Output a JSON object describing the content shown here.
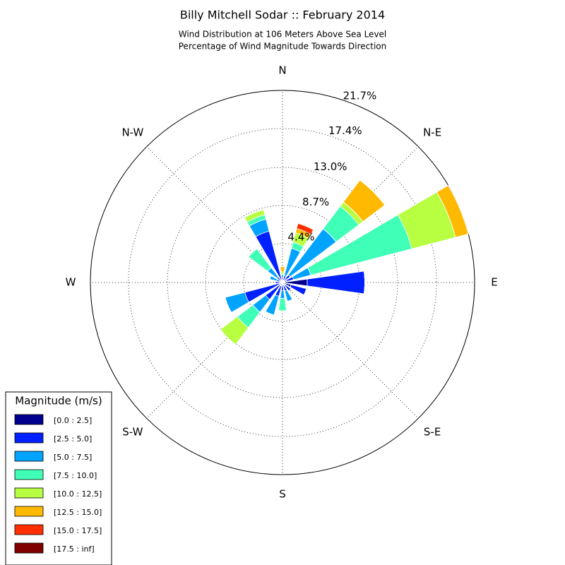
{
  "chart_data": {
    "type": "windrose",
    "title": "Billy Mitchell Sodar :: February 2014",
    "subtitle": [
      "Wind Distribution at 106 Meters Above Sea Level",
      "Percentage of Wind Magnitude Towards Direction"
    ],
    "x": [
      0,
      22.5,
      45,
      67.5,
      90,
      112.5,
      135,
      157.5,
      180,
      202.5,
      225,
      247.5,
      270,
      292.5,
      315,
      337.5
    ],
    "xlim": [
      0,
      360
    ],
    "xticks": [
      {
        "value": 0,
        "label": "N"
      },
      {
        "value": 45,
        "label": "N-E"
      },
      {
        "value": 90,
        "label": "E"
      },
      {
        "value": 135,
        "label": "S-E"
      },
      {
        "value": 180,
        "label": "S"
      },
      {
        "value": 225,
        "label": "S-W"
      },
      {
        "value": 270,
        "label": "W"
      },
      {
        "value": 315,
        "label": "N-W"
      }
    ],
    "ylim": [
      0,
      21.7
    ],
    "yticks": [
      {
        "value": 4.4,
        "label": "4.4%"
      },
      {
        "value": 8.7,
        "label": "8.7%"
      },
      {
        "value": 13.0,
        "label": "13.0%"
      },
      {
        "value": 17.4,
        "label": "17.4%"
      },
      {
        "value": 21.7,
        "label": "21.7%"
      }
    ],
    "grid": true,
    "legend_title": "Magnitude (m/s)",
    "legend_position": "lower-left",
    "series": [
      {
        "name": "[0.0 : 2.5]",
        "color": "#00008f",
        "values": [
          0.2,
          0.3,
          0.3,
          0.5,
          2.8,
          1.0,
          0.4,
          0.3,
          0.3,
          0.4,
          0.4,
          0.4,
          0.3,
          0.3,
          0.2,
          0.3
        ]
      },
      {
        "name": "[2.5 : 5.0]",
        "color": "#0020ff",
        "values": [
          0.4,
          0.5,
          0.8,
          0.8,
          6.5,
          1.8,
          0.8,
          0.7,
          0.6,
          1.2,
          2.0,
          4.0,
          0.5,
          0.4,
          0.6,
          5.7
        ]
      },
      {
        "name": "[5.0 : 7.5]",
        "color": "#00a4ff",
        "values": [
          0.3,
          3.2,
          6.5,
          2.0,
          0,
          0,
          0,
          1.2,
          0.9,
          2.2,
          1.8,
          2.3,
          0,
          0.8,
          1.3,
          1.4
        ]
      },
      {
        "name": "[7.5 : 10.0]",
        "color": "#40ffb7",
        "values": [
          0,
          0.7,
          3.2,
          11.8,
          0,
          0,
          0,
          0,
          1.4,
          0,
          2.2,
          0,
          0,
          0,
          2.7,
          0.5
        ]
      },
      {
        "name": "[10.0 : 12.5]",
        "color": "#b7ff40",
        "values": [
          0.3,
          1.1,
          0.6,
          5.1,
          0,
          0,
          0,
          0,
          0,
          0,
          2.4,
          0,
          0,
          0,
          0,
          0.6
        ]
      },
      {
        "name": "[12.5 : 15.0]",
        "color": "#ffb900",
        "values": [
          0.6,
          0.5,
          3.1,
          1.5,
          0,
          0,
          0,
          0,
          0,
          0,
          0,
          0,
          0,
          0,
          0,
          0
        ]
      },
      {
        "name": "[15.0 : 17.5]",
        "color": "#ff3000",
        "values": [
          0,
          0.6,
          0,
          0,
          0,
          0,
          0,
          0,
          0,
          0,
          0,
          0,
          0,
          0,
          0,
          0
        ]
      },
      {
        "name": "[17.5 : inf]",
        "color": "#800000",
        "values": [
          0,
          0,
          0,
          0,
          0,
          0,
          0,
          0,
          0,
          0,
          0,
          0,
          0,
          0,
          0,
          0
        ]
      }
    ]
  }
}
